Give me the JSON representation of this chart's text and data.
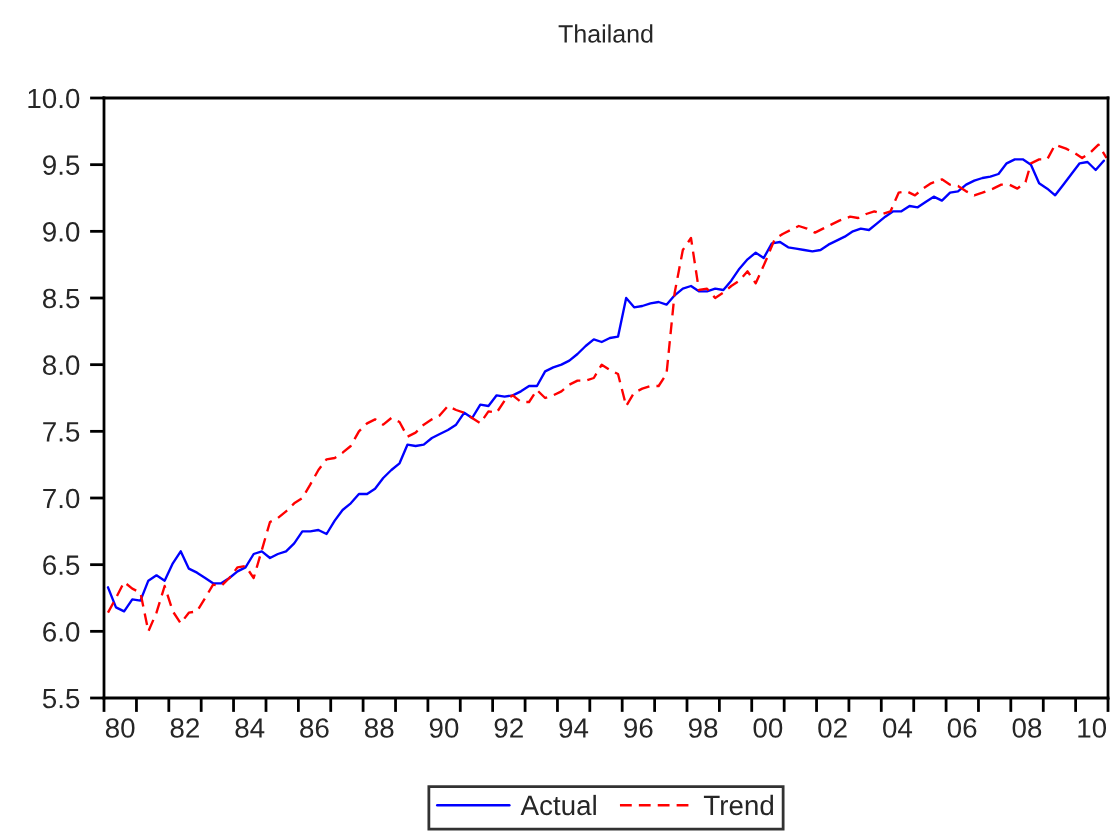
{
  "chart_data": {
    "type": "line",
    "title": "Thailand",
    "xlim": [
      "1980-01-01",
      "2011-01-01"
    ],
    "xticks": [
      {
        "value": "1980",
        "label": null
      },
      {
        "value": "1980-07",
        "label": "80"
      },
      {
        "value": "1981",
        "label": null
      },
      {
        "value": "1982",
        "label": null
      },
      {
        "value": "1982-07",
        "label": "82"
      },
      {
        "value": "1983",
        "label": null
      },
      {
        "value": "1984",
        "label": null
      },
      {
        "value": "1984-07",
        "label": "84"
      },
      {
        "value": "1985",
        "label": null
      },
      {
        "value": "1986",
        "label": null
      },
      {
        "value": "1986-07",
        "label": "86"
      },
      {
        "value": "1987",
        "label": null
      },
      {
        "value": "1988",
        "label": null
      },
      {
        "value": "1988-07",
        "label": "88"
      },
      {
        "value": "1989",
        "label": null
      },
      {
        "value": "1990",
        "label": null
      },
      {
        "value": "1990-07",
        "label": "90"
      },
      {
        "value": "1991",
        "label": null
      },
      {
        "value": "1992",
        "label": null
      },
      {
        "value": "1992-07",
        "label": "92"
      },
      {
        "value": "1993",
        "label": null
      },
      {
        "value": "1994",
        "label": null
      },
      {
        "value": "1994-07",
        "label": "94"
      },
      {
        "value": "1995",
        "label": null
      },
      {
        "value": "1996",
        "label": null
      },
      {
        "value": "1996-07",
        "label": "96"
      },
      {
        "value": "1997",
        "label": null
      },
      {
        "value": "1998",
        "label": null
      },
      {
        "value": "1998-07",
        "label": "98"
      },
      {
        "value": "1999",
        "label": null
      },
      {
        "value": "2000",
        "label": null
      },
      {
        "value": "2000-07",
        "label": "00"
      },
      {
        "value": "2001",
        "label": null
      },
      {
        "value": "2002",
        "label": null
      },
      {
        "value": "2002-07",
        "label": "02"
      },
      {
        "value": "2003",
        "label": null
      },
      {
        "value": "2004",
        "label": null
      },
      {
        "value": "2004-07",
        "label": "04"
      },
      {
        "value": "2005",
        "label": null
      },
      {
        "value": "2006",
        "label": null
      },
      {
        "value": "2006-07",
        "label": "06"
      },
      {
        "value": "2007",
        "label": null
      },
      {
        "value": "2008",
        "label": null
      },
      {
        "value": "2008-07",
        "label": "08"
      },
      {
        "value": "2009",
        "label": null
      },
      {
        "value": "2010",
        "label": null
      },
      {
        "value": "2010-07",
        "label": "10"
      },
      {
        "value": "2011",
        "label": null
      }
    ],
    "ylim": [
      5.5,
      10.0
    ],
    "yticks": [
      5.5,
      {
        "value": 6,
        "label": "6.0"
      },
      6.5,
      {
        "value": 7,
        "label": "7.0"
      },
      7.5,
      {
        "value": 8,
        "label": "8.0"
      },
      8.5,
      {
        "value": 9,
        "label": "9.0"
      },
      9.5,
      {
        "value": 10,
        "label": "10.0"
      }
    ],
    "legend": "bottom",
    "marker": "none",
    "x": [
      "1980-02-15",
      "1980-05-15",
      "1980-08-15",
      "1980-11-15",
      "1981-02-15",
      "1981-05-15",
      "1981-08-15",
      "1981-11-15",
      "1982-02-15",
      "1982-05-15",
      "1982-08-15",
      "1982-11-15",
      "1983-02-15",
      "1983-05-15",
      "1983-08-15",
      "1983-11-15",
      "1984-02-15",
      "1984-05-15",
      "1984-08-15",
      "1984-11-15",
      "1985-02-15",
      "1985-05-15",
      "1985-08-15",
      "1985-11-15",
      "1986-02-15",
      "1986-05-15",
      "1986-08-15",
      "1986-11-15",
      "1987-02-15",
      "1987-05-15",
      "1987-08-15",
      "1987-11-15",
      "1988-02-15",
      "1988-05-15",
      "1988-08-15",
      "1988-11-15",
      "1989-02-15",
      "1989-05-15",
      "1989-08-15",
      "1989-11-15",
      "1990-02-15",
      "1990-05-15",
      "1990-08-15",
      "1990-11-15",
      "1991-02-15",
      "1991-05-15",
      "1991-08-15",
      "1991-11-15",
      "1992-02-15",
      "1992-05-15",
      "1992-08-15",
      "1992-11-15",
      "1993-02-15",
      "1993-05-15",
      "1993-08-15",
      "1993-11-15",
      "1994-02-15",
      "1994-05-15",
      "1994-08-15",
      "1994-11-15",
      "1995-02-15",
      "1995-05-15",
      "1995-08-15",
      "1995-11-15",
      "1996-02-15",
      "1996-05-15",
      "1996-08-15",
      "1996-11-15",
      "1997-02-15",
      "1997-05-15",
      "1997-08-15",
      "1997-11-15",
      "1998-02-15",
      "1998-05-15",
      "1998-08-15",
      "1998-11-15",
      "1999-02-15",
      "1999-05-15",
      "1999-08-15",
      "1999-11-15",
      "2000-02-15",
      "2000-05-15",
      "2000-08-15",
      "2000-11-15",
      "2001-02-15",
      "2001-05-15",
      "2001-08-15",
      "2001-11-15",
      "2002-02-15",
      "2002-05-15",
      "2002-08-15",
      "2002-11-15",
      "2003-02-15",
      "2003-05-15",
      "2003-08-15",
      "2003-11-15",
      "2004-02-15",
      "2004-05-15",
      "2004-08-15",
      "2004-11-15",
      "2005-02-15",
      "2005-05-15",
      "2005-08-15",
      "2005-11-15",
      "2006-02-15",
      "2006-05-15",
      "2006-08-15",
      "2006-11-15",
      "2007-02-15",
      "2007-05-15",
      "2007-08-15",
      "2007-11-15",
      "2008-02-15",
      "2008-05-15",
      "2008-08-15",
      "2008-11-15",
      "2009-02-15",
      "2009-05-15",
      "2009-08-15",
      "2009-11-15",
      "2010-02-15",
      "2010-05-15",
      "2010-08-15",
      "2010-11-15"
    ],
    "series": [
      {
        "name": "Actual",
        "color": "#0000ff",
        "line_style": "solid",
        "values": [
          6.33,
          6.18,
          6.15,
          6.24,
          6.23,
          6.38,
          6.42,
          6.38,
          6.51,
          6.6,
          6.47,
          6.44,
          6.4,
          6.36,
          6.36,
          6.4,
          6.45,
          6.48,
          6.58,
          6.6,
          6.55,
          6.58,
          6.6,
          6.66,
          6.75,
          6.75,
          6.76,
          6.73,
          6.83,
          6.91,
          6.96,
          7.03,
          7.03,
          7.07,
          7.15,
          7.21,
          7.26,
          7.4,
          7.39,
          7.4,
          7.45,
          7.48,
          7.51,
          7.55,
          7.64,
          7.6,
          7.7,
          7.69,
          7.77,
          7.76,
          7.77,
          7.8,
          7.84,
          7.84,
          7.95,
          7.98,
          8.0,
          8.03,
          8.08,
          8.14,
          8.19,
          8.17,
          8.2,
          8.21,
          8.5,
          8.43,
          8.44,
          8.46,
          8.47,
          8.45,
          8.52,
          8.57,
          8.59,
          8.55,
          8.55,
          8.57,
          8.56,
          8.63,
          8.72,
          8.79,
          8.84,
          8.8,
          8.91,
          8.92,
          8.88,
          8.87,
          8.86,
          8.85,
          8.86,
          8.9,
          8.93,
          8.96,
          9.0,
          9.02,
          9.01,
          9.06,
          9.11,
          9.15,
          9.15,
          9.19,
          9.18,
          9.22,
          9.26,
          9.23,
          9.29,
          9.3,
          9.35,
          9.38,
          9.4,
          9.41,
          9.43,
          9.51,
          9.54,
          9.54,
          9.5,
          9.36,
          9.32,
          9.27,
          9.35,
          9.43,
          9.51,
          9.52,
          9.46,
          9.53
        ]
      },
      {
        "name": "Trend",
        "color": "#ff0000",
        "line_style": "dashed",
        "x": [
          "1980-02-15",
          "1980-05-15",
          "1980-08-15",
          "1980-11-15",
          "1981-02-15",
          "1981-05-15",
          "1981-08-15",
          "1981-11-15",
          "1982-02-15",
          "1982-05-15",
          "1982-08-15",
          "1982-11-15",
          "1983-02-15",
          "1983-05-15",
          "1983-08-15",
          "1983-11-15",
          "1984-02-15",
          "1984-05-15",
          "1984-08-15",
          "1984-11-15",
          "1985-02-15",
          "1985-05-15",
          "1985-08-15",
          "1985-11-15",
          "1986-02-15",
          "1986-05-15",
          "1986-08-15",
          "1986-11-15",
          "1987-02-15",
          "1987-05-15",
          "1987-08-15",
          "1987-11-15",
          "1988-02-15",
          "1988-05-15",
          "1988-08-15",
          "1988-11-15",
          "1989-02-15",
          "1989-05-15",
          "1989-08-15",
          "1989-11-15",
          "1990-02-15",
          "1990-05-15",
          "1990-08-15",
          "1990-11-15",
          "1991-02-15",
          "1991-05-15",
          "1991-08-15",
          "1991-11-15",
          "1992-02-15",
          "1992-05-15",
          "1992-08-15",
          "1992-11-15",
          "1993-02-15",
          "1993-05-15",
          "1993-08-15",
          "1993-11-15",
          "1994-02-15",
          "1994-05-15",
          "1994-08-15",
          "1994-11-15",
          "1995-02-15",
          "1995-05-15",
          "1995-08-15",
          "1995-11-15",
          "1996-02-15",
          "1996-05-15",
          "1996-08-15",
          "1996-11-15",
          "1997-02-15",
          "1997-05-15",
          "1997-08-15",
          "1997-11-15",
          "1998-02-15",
          "1998-05-15",
          "1998-08-15",
          "1998-11-15",
          "1999-02-15",
          "1999-05-15",
          "1999-08-15",
          "1999-11-15",
          "2000-02-15",
          "2000-06-15",
          "2000-09-15",
          "2000-12-15",
          "2001-03-15",
          "2001-06-15",
          "2001-09-15",
          "2001-12-15",
          "2002-03-15",
          "2002-06-15",
          "2002-09-15",
          "2003-01-15",
          "2003-04-15",
          "2003-07-15",
          "2003-10-15",
          "2004-01-15",
          "2004-04-15",
          "2004-07-15",
          "2004-10-15",
          "2005-01-15",
          "2005-04-15",
          "2005-07-15",
          "2005-11-15",
          "2006-02-15",
          "2006-05-15",
          "2006-08-15",
          "2006-11-15",
          "2007-02-15",
          "2007-06-15",
          "2007-09-15",
          "2007-12-15",
          "2008-03-15",
          "2008-06-15",
          "2008-08-15",
          "2008-11-15",
          "2009-02-15",
          "2009-05-15",
          "2009-09-15",
          "2009-12-15",
          "2010-03-15",
          "2010-06-15",
          "2010-09-15",
          "2010-12-15"
        ],
        "values": [
          6.14,
          6.25,
          6.37,
          6.32,
          6.29,
          6.0,
          6.14,
          6.34,
          6.15,
          6.06,
          6.14,
          6.15,
          6.25,
          6.35,
          6.34,
          6.4,
          6.48,
          6.49,
          6.4,
          6.61,
          6.82,
          6.85,
          6.9,
          6.96,
          7.0,
          7.1,
          7.21,
          7.29,
          7.3,
          7.34,
          7.39,
          7.5,
          7.56,
          7.59,
          7.55,
          7.6,
          7.57,
          7.46,
          7.49,
          7.55,
          7.59,
          7.62,
          7.69,
          7.66,
          7.64,
          7.6,
          7.56,
          7.65,
          7.64,
          7.73,
          7.77,
          7.72,
          7.72,
          7.81,
          7.75,
          7.77,
          7.8,
          7.85,
          7.88,
          7.88,
          7.9,
          8.0,
          7.96,
          7.93,
          7.69,
          7.79,
          7.82,
          7.84,
          7.84,
          7.93,
          8.54,
          8.86,
          8.95,
          8.56,
          8.57,
          8.5,
          8.54,
          8.59,
          8.63,
          8.7,
          8.61,
          8.79,
          8.94,
          8.98,
          9.01,
          9.04,
          9.02,
          8.99,
          9.02,
          9.05,
          9.08,
          9.11,
          9.1,
          9.13,
          9.15,
          9.13,
          9.15,
          9.29,
          9.3,
          9.27,
          9.32,
          9.36,
          9.39,
          9.35,
          9.34,
          9.3,
          9.27,
          9.29,
          9.32,
          9.35,
          9.35,
          9.32,
          9.37,
          9.51,
          9.54,
          9.54,
          9.65,
          9.62,
          9.59,
          9.55,
          9.59,
          9.65,
          9.55
        ]
      }
    ]
  }
}
